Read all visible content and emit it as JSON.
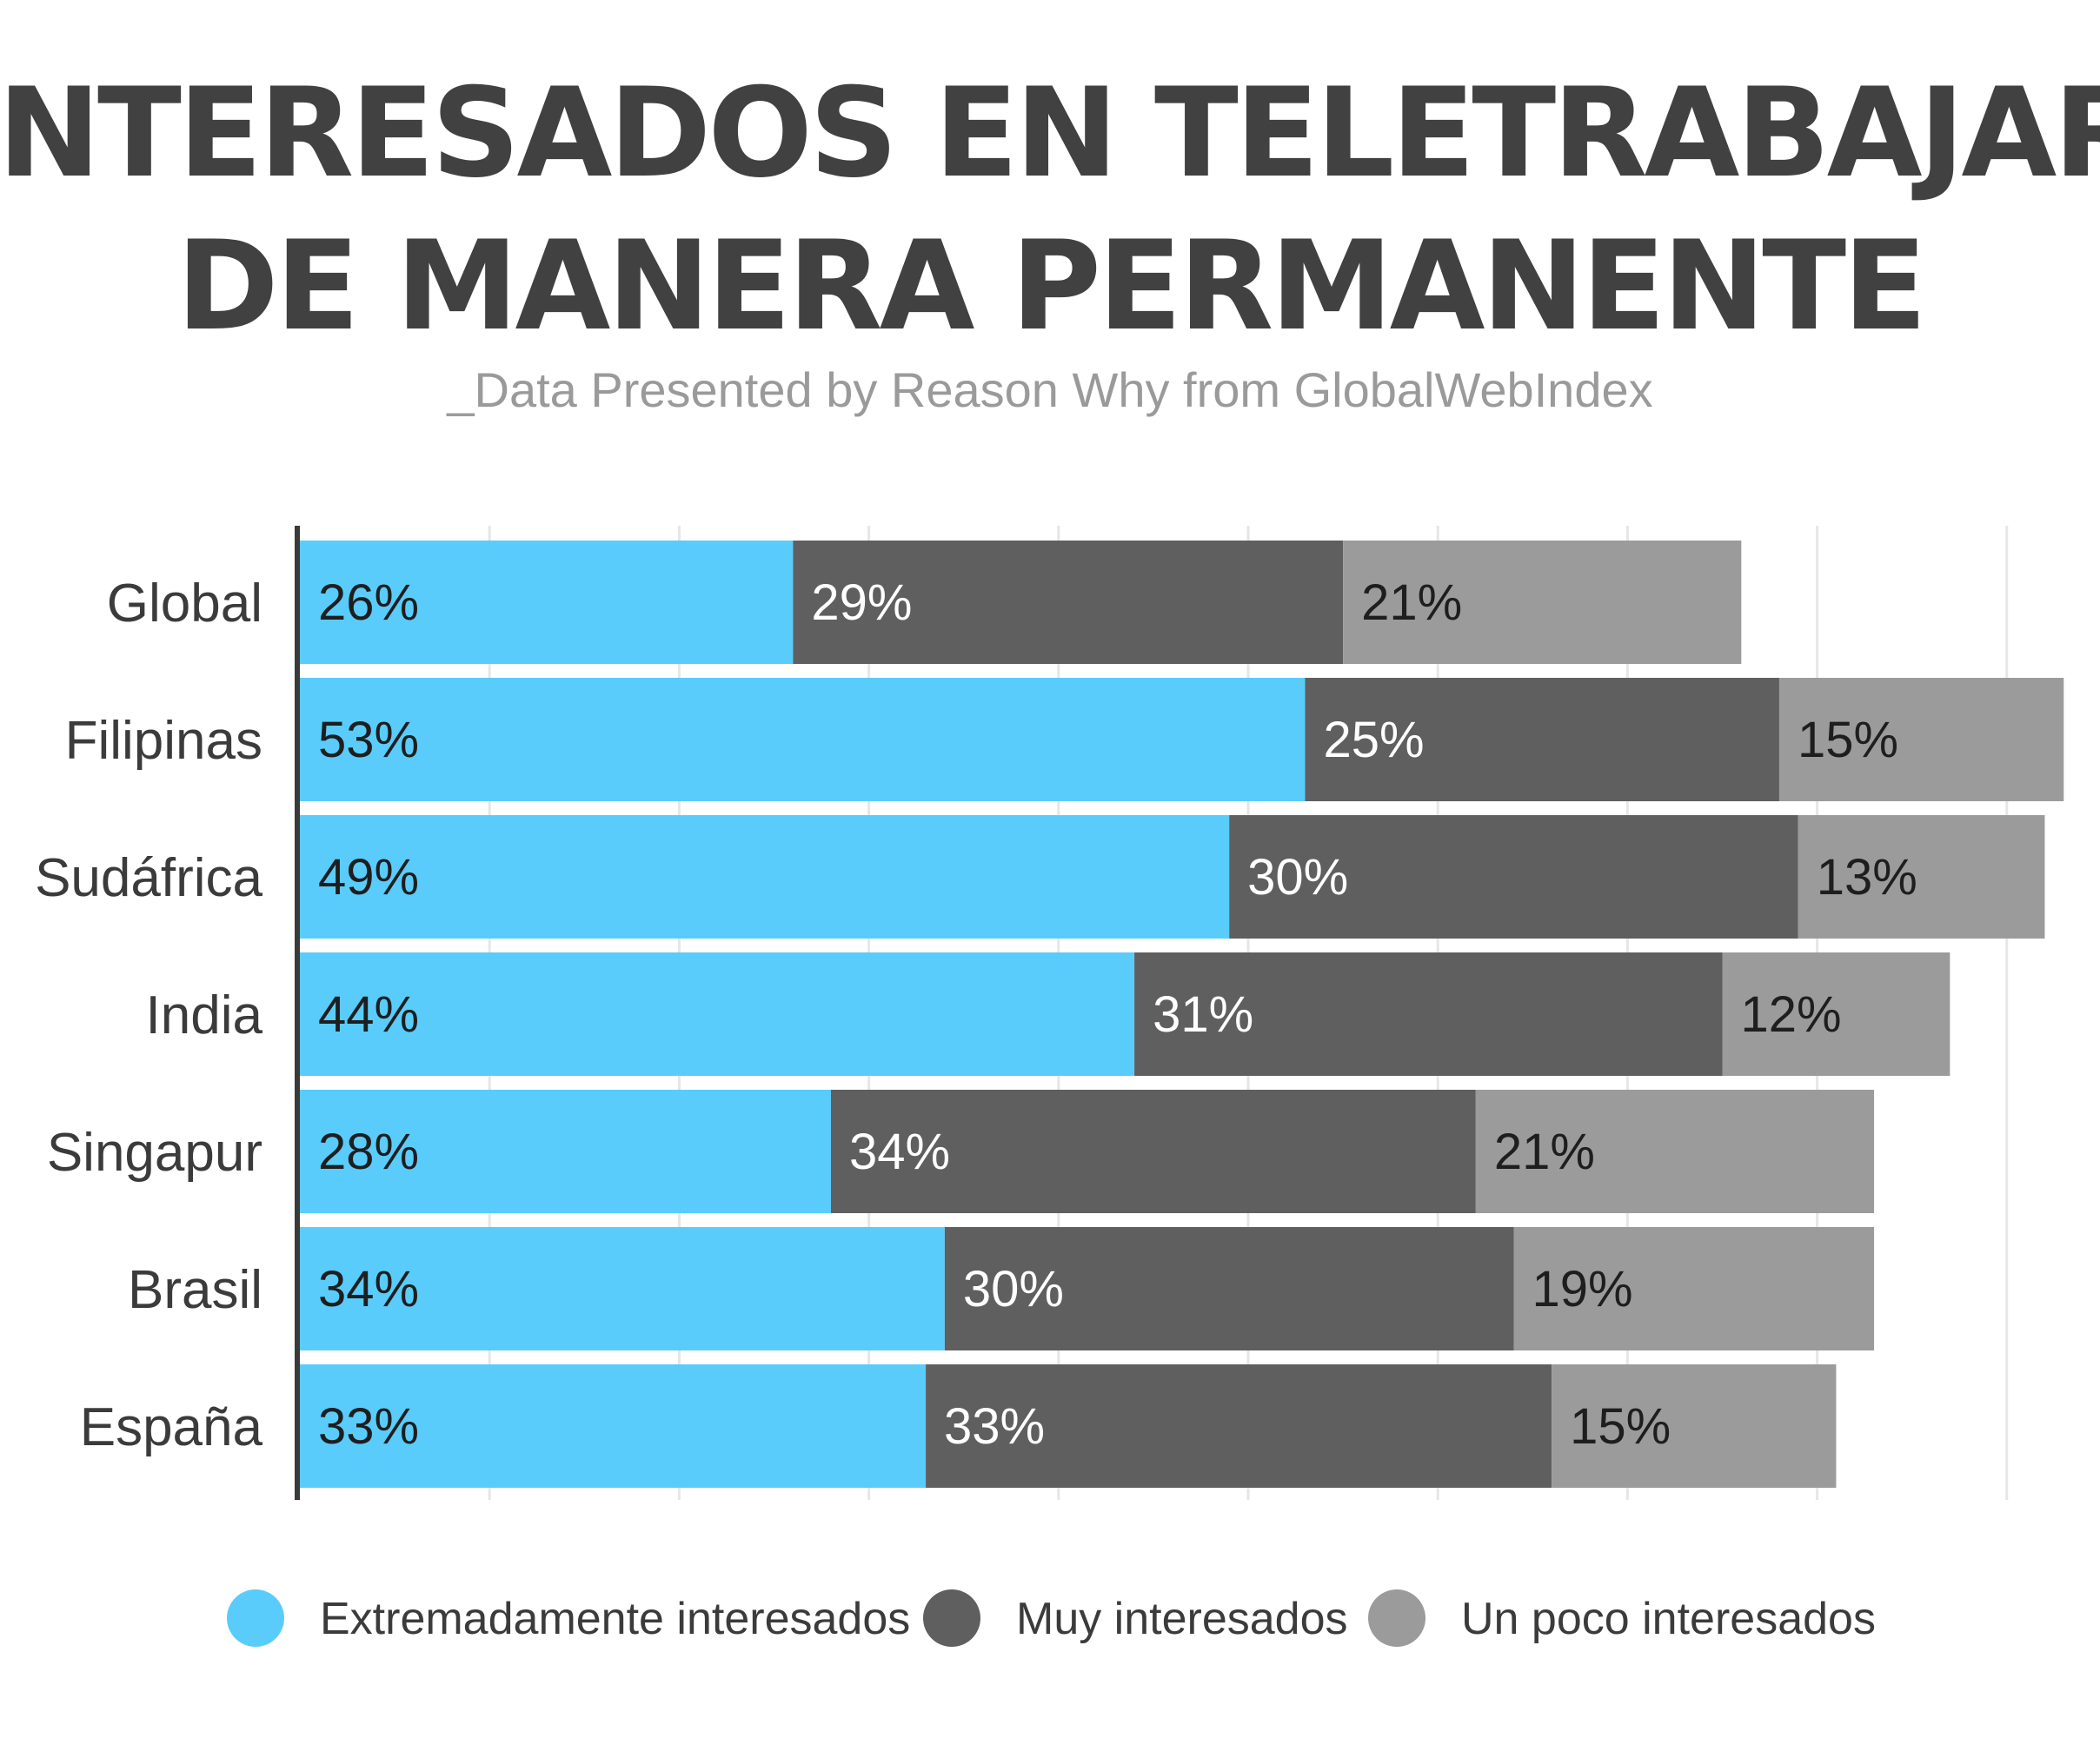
{
  "chart_data": {
    "type": "bar",
    "orientation": "horizontal",
    "stacked": true,
    "title": [
      "INTERESADOS EN TELETRABAJAR",
      "DE MANERA PERMANENTE"
    ],
    "subtitle": "_Data Presented by Reason Why from GlobalWebIndex",
    "xlabel": "",
    "ylabel": "",
    "xlim": [
      0,
      93
    ],
    "grid": true,
    "legend_position": "bottom",
    "categories": [
      "Global",
      "Filipinas",
      "Sudáfrica",
      "India",
      "Singapur",
      "Brasil",
      "España"
    ],
    "series": [
      {
        "name": "Extremadamente interesados",
        "color": "#59ccfc",
        "label_color": "#1e1e1e",
        "values": [
          26,
          53,
          49,
          44,
          28,
          34,
          33
        ],
        "labels": [
          "26%",
          "53%",
          "49%",
          "44%",
          "28%",
          "34%",
          "33%"
        ]
      },
      {
        "name": "Muy interesados",
        "color": "#5f5f5f",
        "label_color": "#ffffff",
        "values": [
          29,
          25,
          30,
          31,
          34,
          30,
          33
        ],
        "labels": [
          "29%",
          "25%",
          "30%",
          "31%",
          "34%",
          "30%",
          "33%"
        ]
      },
      {
        "name": "Un poco interesados",
        "color": "#9b9b9b",
        "label_color": "#1e1e1e",
        "values": [
          21,
          15,
          13,
          12,
          21,
          19,
          15
        ],
        "labels": [
          "21%",
          "15%",
          "13%",
          "12%",
          "21%",
          "19%",
          "15%"
        ]
      }
    ]
  }
}
